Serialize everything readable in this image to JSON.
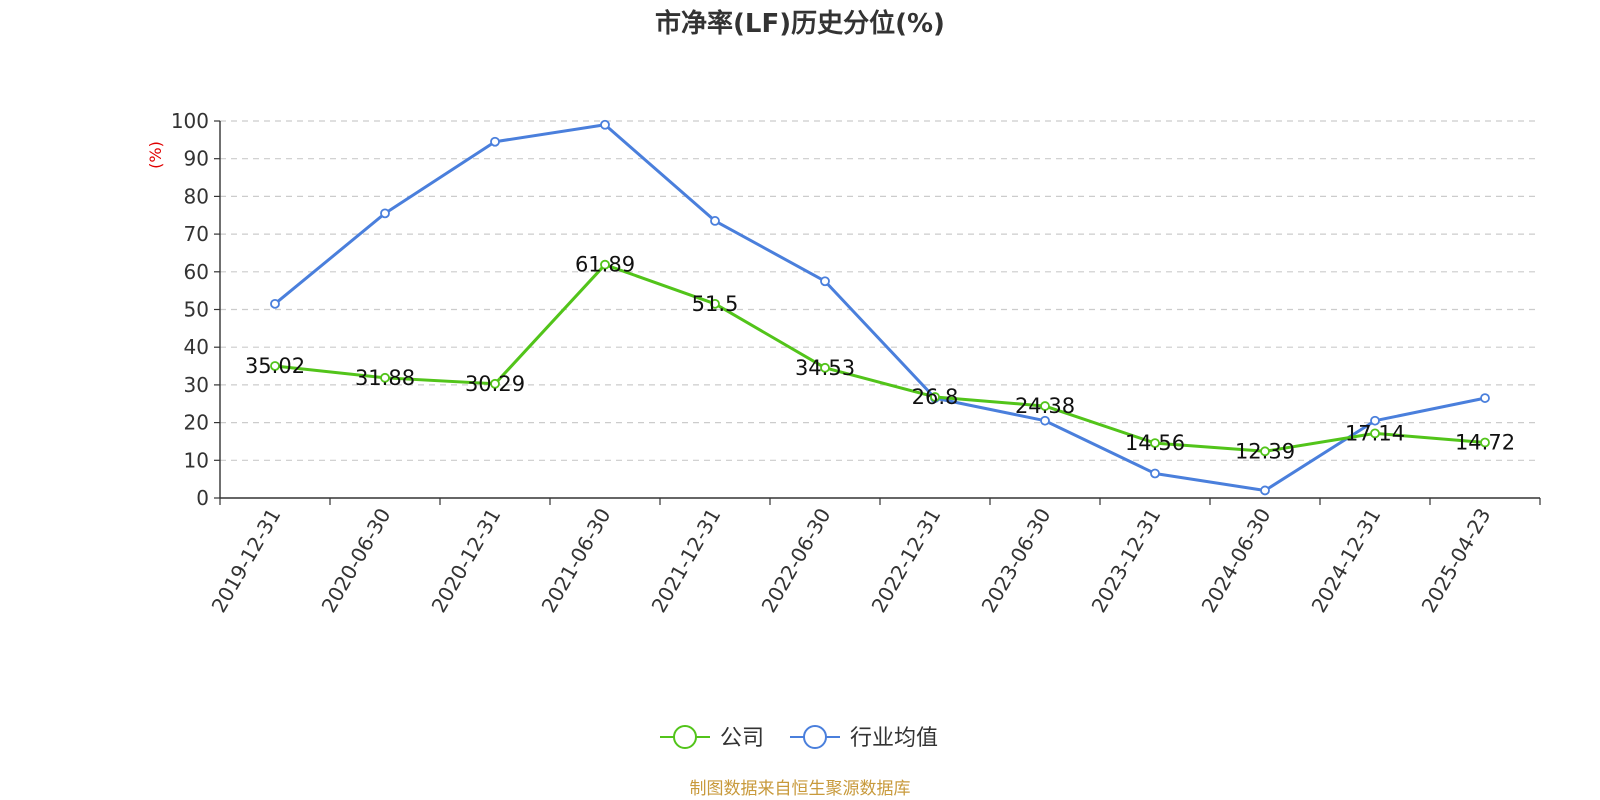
{
  "chart_data": {
    "type": "line",
    "title": "市净率(LF)历史分位(%)",
    "ylabel": "(%)",
    "ylim": [
      0,
      100
    ],
    "yticks": [
      0,
      10,
      20,
      30,
      40,
      50,
      60,
      70,
      80,
      90,
      100
    ],
    "grid": true,
    "categories": [
      "2019-12-31",
      "2020-06-30",
      "2020-12-31",
      "2021-06-30",
      "2021-12-31",
      "2022-06-30",
      "2022-12-31",
      "2023-06-30",
      "2023-12-31",
      "2024-06-30",
      "2024-12-31",
      "2025-04-23"
    ],
    "series": [
      {
        "name": "公司",
        "color": "#52c41a",
        "values": [
          35.02,
          31.88,
          30.29,
          61.89,
          51.5,
          34.53,
          26.8,
          24.38,
          14.56,
          12.39,
          17.14,
          14.72
        ],
        "labels": [
          "35.02",
          "31.88",
          "30.29",
          "61.89",
          "51.5",
          "34.53",
          "26.8",
          "24.38",
          "14.56",
          "12.39",
          "17.14",
          "14.72"
        ]
      },
      {
        "name": "行业均值",
        "color": "#4a7fdc",
        "values": [
          51.5,
          75.5,
          94.5,
          99,
          73.5,
          57.5,
          26.5,
          20.5,
          6.5,
          2,
          20.5,
          26.5
        ]
      }
    ],
    "legend_position": "bottom-center",
    "source": "制图数据来自恒生聚源数据库"
  }
}
